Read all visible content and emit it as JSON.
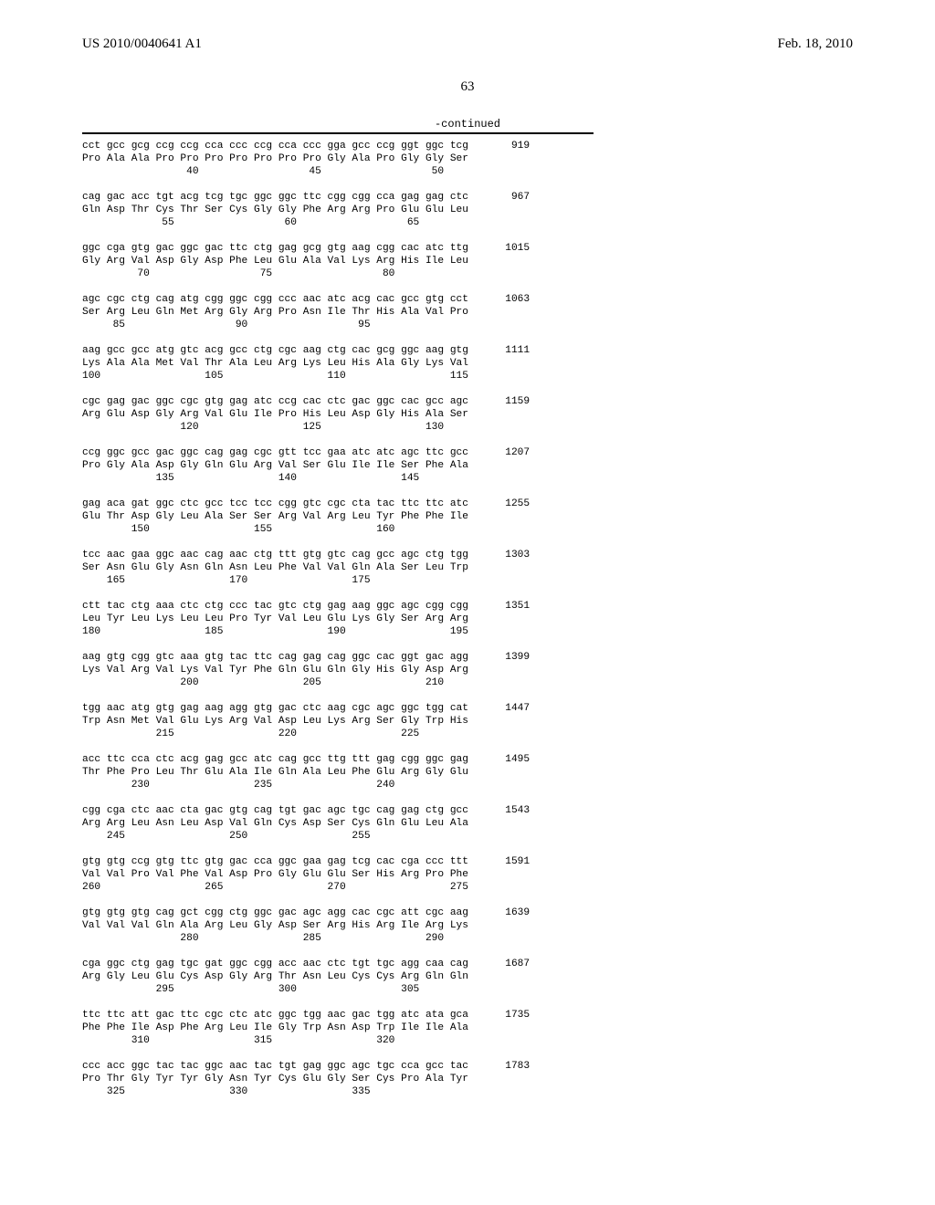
{
  "header": {
    "left": "US 2010/0040641 A1",
    "right": "Feb. 18, 2010"
  },
  "pagenum": "63",
  "continued": "-continued",
  "seq": [
    "cct gcc gcg ccg ccg cca ccc ccg cca ccc gga gcc ccg ggt ggc tcg       919",
    "Pro Ala Ala Pro Pro Pro Pro Pro Pro Pro Gly Ala Pro Gly Gly Ser",
    "                 40                  45                  50",
    "",
    "cag gac acc tgt acg tcg tgc ggc ggc ttc cgg cgg cca gag gag ctc       967",
    "Gln Asp Thr Cys Thr Ser Cys Gly Gly Phe Arg Arg Pro Glu Glu Leu",
    "             55                  60                  65",
    "",
    "ggc cga gtg gac ggc gac ttc ctg gag gcg gtg aag cgg cac atc ttg      1015",
    "Gly Arg Val Asp Gly Asp Phe Leu Glu Ala Val Lys Arg His Ile Leu",
    "         70                  75                  80",
    "",
    "agc cgc ctg cag atg cgg ggc cgg ccc aac atc acg cac gcc gtg cct      1063",
    "Ser Arg Leu Gln Met Arg Gly Arg Pro Asn Ile Thr His Ala Val Pro",
    "     85                  90                  95",
    "",
    "aag gcc gcc atg gtc acg gcc ctg cgc aag ctg cac gcg ggc aag gtg      1111",
    "Lys Ala Ala Met Val Thr Ala Leu Arg Lys Leu His Ala Gly Lys Val",
    "100                 105                 110                 115",
    "",
    "cgc gag gac ggc cgc gtg gag atc ccg cac ctc gac ggc cac gcc agc      1159",
    "Arg Glu Asp Gly Arg Val Glu Ile Pro His Leu Asp Gly His Ala Ser",
    "                120                 125                 130",
    "",
    "ccg ggc gcc gac ggc cag gag cgc gtt tcc gaa atc atc agc ttc gcc      1207",
    "Pro Gly Ala Asp Gly Gln Glu Arg Val Ser Glu Ile Ile Ser Phe Ala",
    "            135                 140                 145",
    "",
    "gag aca gat ggc ctc gcc tcc tcc cgg gtc cgc cta tac ttc ttc atc      1255",
    "Glu Thr Asp Gly Leu Ala Ser Ser Arg Val Arg Leu Tyr Phe Phe Ile",
    "        150                 155                 160",
    "",
    "tcc aac gaa ggc aac cag aac ctg ttt gtg gtc cag gcc agc ctg tgg      1303",
    "Ser Asn Glu Gly Asn Gln Asn Leu Phe Val Val Gln Ala Ser Leu Trp",
    "    165                 170                 175",
    "",
    "ctt tac ctg aaa ctc ctg ccc tac gtc ctg gag aag ggc agc cgg cgg      1351",
    "Leu Tyr Leu Lys Leu Leu Pro Tyr Val Leu Glu Lys Gly Ser Arg Arg",
    "180                 185                 190                 195",
    "",
    "aag gtg cgg gtc aaa gtg tac ttc cag gag cag ggc cac ggt gac agg      1399",
    "Lys Val Arg Val Lys Val Tyr Phe Gln Glu Gln Gly His Gly Asp Arg",
    "                200                 205                 210",
    "",
    "tgg aac atg gtg gag aag agg gtg gac ctc aag cgc agc ggc tgg cat      1447",
    "Trp Asn Met Val Glu Lys Arg Val Asp Leu Lys Arg Ser Gly Trp His",
    "            215                 220                 225",
    "",
    "acc ttc cca ctc acg gag gcc atc cag gcc ttg ttt gag cgg ggc gag      1495",
    "Thr Phe Pro Leu Thr Glu Ala Ile Gln Ala Leu Phe Glu Arg Gly Glu",
    "        230                 235                 240",
    "",
    "cgg cga ctc aac cta gac gtg cag tgt gac agc tgc cag gag ctg gcc      1543",
    "Arg Arg Leu Asn Leu Asp Val Gln Cys Asp Ser Cys Gln Glu Leu Ala",
    "    245                 250                 255",
    "",
    "gtg gtg ccg gtg ttc gtg gac cca ggc gaa gag tcg cac cga ccc ttt      1591",
    "Val Val Pro Val Phe Val Asp Pro Gly Glu Glu Ser His Arg Pro Phe",
    "260                 265                 270                 275",
    "",
    "gtg gtg gtg cag gct cgg ctg ggc gac agc agg cac cgc att cgc aag      1639",
    "Val Val Val Gln Ala Arg Leu Gly Asp Ser Arg His Arg Ile Arg Lys",
    "                280                 285                 290",
    "",
    "cga ggc ctg gag tgc gat ggc cgg acc aac ctc tgt tgc agg caa cag      1687",
    "Arg Gly Leu Glu Cys Asp Gly Arg Thr Asn Leu Cys Cys Arg Gln Gln",
    "            295                 300                 305",
    "",
    "ttc ttc att gac ttc cgc ctc atc ggc tgg aac gac tgg atc ata gca      1735",
    "Phe Phe Ile Asp Phe Arg Leu Ile Gly Trp Asn Asp Trp Ile Ile Ala",
    "        310                 315                 320",
    "",
    "ccc acc ggc tac tac ggc aac tac tgt gag ggc agc tgc cca gcc tac      1783",
    "Pro Thr Gly Tyr Tyr Gly Asn Tyr Cys Glu Gly Ser Cys Pro Ala Tyr",
    "    325                 330                 335"
  ]
}
